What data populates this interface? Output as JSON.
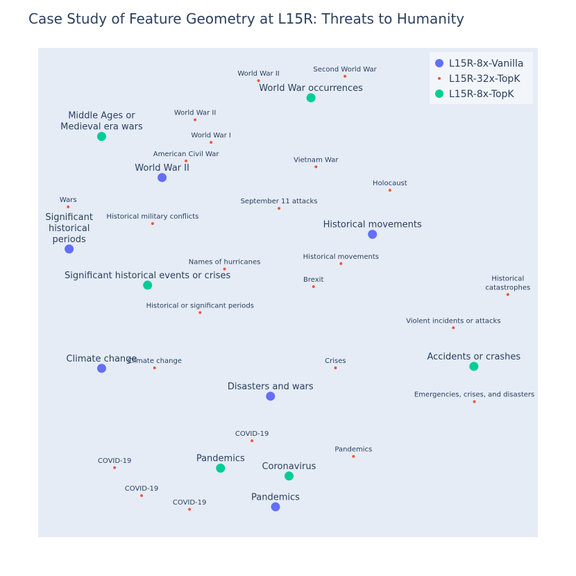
{
  "chart_data": {
    "type": "scatter",
    "title": "Case Study of Feature Geometry at L15R: Threats to Humanity",
    "xlim": [
      0,
      100
    ],
    "ylim": [
      0,
      100
    ],
    "grid": false,
    "legend_position": "top-right",
    "background_color": "#e5ecf6",
    "series": [
      {
        "name": "L15R-8x-Vanilla",
        "color": "#636efa",
        "marker": "large",
        "points": [
          {
            "x": 24.8,
            "y": 73.5,
            "label": [
              "World War II"
            ]
          },
          {
            "x": 6.2,
            "y": 58.9,
            "label": [
              "Significant",
              "historical",
              "periods"
            ]
          },
          {
            "x": 66.9,
            "y": 61.9,
            "label": [
              "Historical movements"
            ]
          },
          {
            "x": 12.7,
            "y": 34.5,
            "label": [
              "Climate change"
            ]
          },
          {
            "x": 46.5,
            "y": 28.8,
            "label": [
              "Disasters and wars"
            ]
          },
          {
            "x": 47.5,
            "y": 6.2,
            "label": [
              "Pandemics"
            ]
          }
        ]
      },
      {
        "name": "L15R-32x-TopK",
        "color": "#ef553b",
        "marker": "small",
        "points": [
          {
            "x": 44.1,
            "y": 93.3,
            "label": [
              "World War II"
            ]
          },
          {
            "x": 61.4,
            "y": 94.2,
            "label": [
              "Second World War"
            ]
          },
          {
            "x": 31.4,
            "y": 85.3,
            "label": [
              "World War II"
            ]
          },
          {
            "x": 34.6,
            "y": 80.7,
            "label": [
              "World War I"
            ]
          },
          {
            "x": 29.6,
            "y": 76.9,
            "label": [
              "American Civil War"
            ]
          },
          {
            "x": 55.6,
            "y": 75.7,
            "label": [
              "Vietnam War"
            ]
          },
          {
            "x": 70.4,
            "y": 70.9,
            "label": [
              "Holocaust"
            ]
          },
          {
            "x": 6.0,
            "y": 67.5,
            "label": [
              "Wars"
            ]
          },
          {
            "x": 48.2,
            "y": 67.2,
            "label": [
              "September 11 attacks"
            ]
          },
          {
            "x": 22.9,
            "y": 64.1,
            "label": [
              "Historical military conflicts"
            ]
          },
          {
            "x": 37.3,
            "y": 54.8,
            "label": [
              "Names of hurricanes"
            ]
          },
          {
            "x": 60.6,
            "y": 55.9,
            "label": [
              "Historical movements"
            ]
          },
          {
            "x": 55.1,
            "y": 51.2,
            "label": [
              "Brexit"
            ]
          },
          {
            "x": 94.0,
            "y": 49.6,
            "label": [
              "Historical",
              "catastrophes"
            ]
          },
          {
            "x": 32.4,
            "y": 45.9,
            "label": [
              "Historical or significant periods"
            ]
          },
          {
            "x": 83.1,
            "y": 42.8,
            "label": [
              "Violent incidents or attacks"
            ]
          },
          {
            "x": 23.3,
            "y": 34.6,
            "label": [
              "Climate change"
            ]
          },
          {
            "x": 59.5,
            "y": 34.6,
            "label": [
              "Crises"
            ]
          },
          {
            "x": 87.3,
            "y": 27.7,
            "label": [
              "Emergencies, crises, and disasters"
            ]
          },
          {
            "x": 42.8,
            "y": 19.7,
            "label": [
              "COVID-19"
            ]
          },
          {
            "x": 63.1,
            "y": 16.5,
            "label": [
              "Pandemics"
            ]
          },
          {
            "x": 15.3,
            "y": 14.2,
            "label": [
              "COVID-19"
            ]
          },
          {
            "x": 20.7,
            "y": 8.5,
            "label": [
              "COVID-19"
            ]
          },
          {
            "x": 30.3,
            "y": 5.7,
            "label": [
              "COVID-19"
            ]
          }
        ]
      },
      {
        "name": "L15R-8x-TopK",
        "color": "#00cc96",
        "marker": "large",
        "points": [
          {
            "x": 54.6,
            "y": 89.8,
            "label": [
              "World War occurrences"
            ]
          },
          {
            "x": 12.7,
            "y": 81.9,
            "label": [
              "Middle Ages or",
              "Medieval era wars"
            ]
          },
          {
            "x": 21.9,
            "y": 51.5,
            "label": [
              "Significant historical events or crises"
            ]
          },
          {
            "x": 87.2,
            "y": 34.9,
            "label": [
              "Accidents or crashes"
            ]
          },
          {
            "x": 36.5,
            "y": 14.1,
            "label": [
              "Pandemics"
            ]
          },
          {
            "x": 50.2,
            "y": 12.5,
            "label": [
              "Coronavirus"
            ]
          }
        ]
      }
    ]
  }
}
